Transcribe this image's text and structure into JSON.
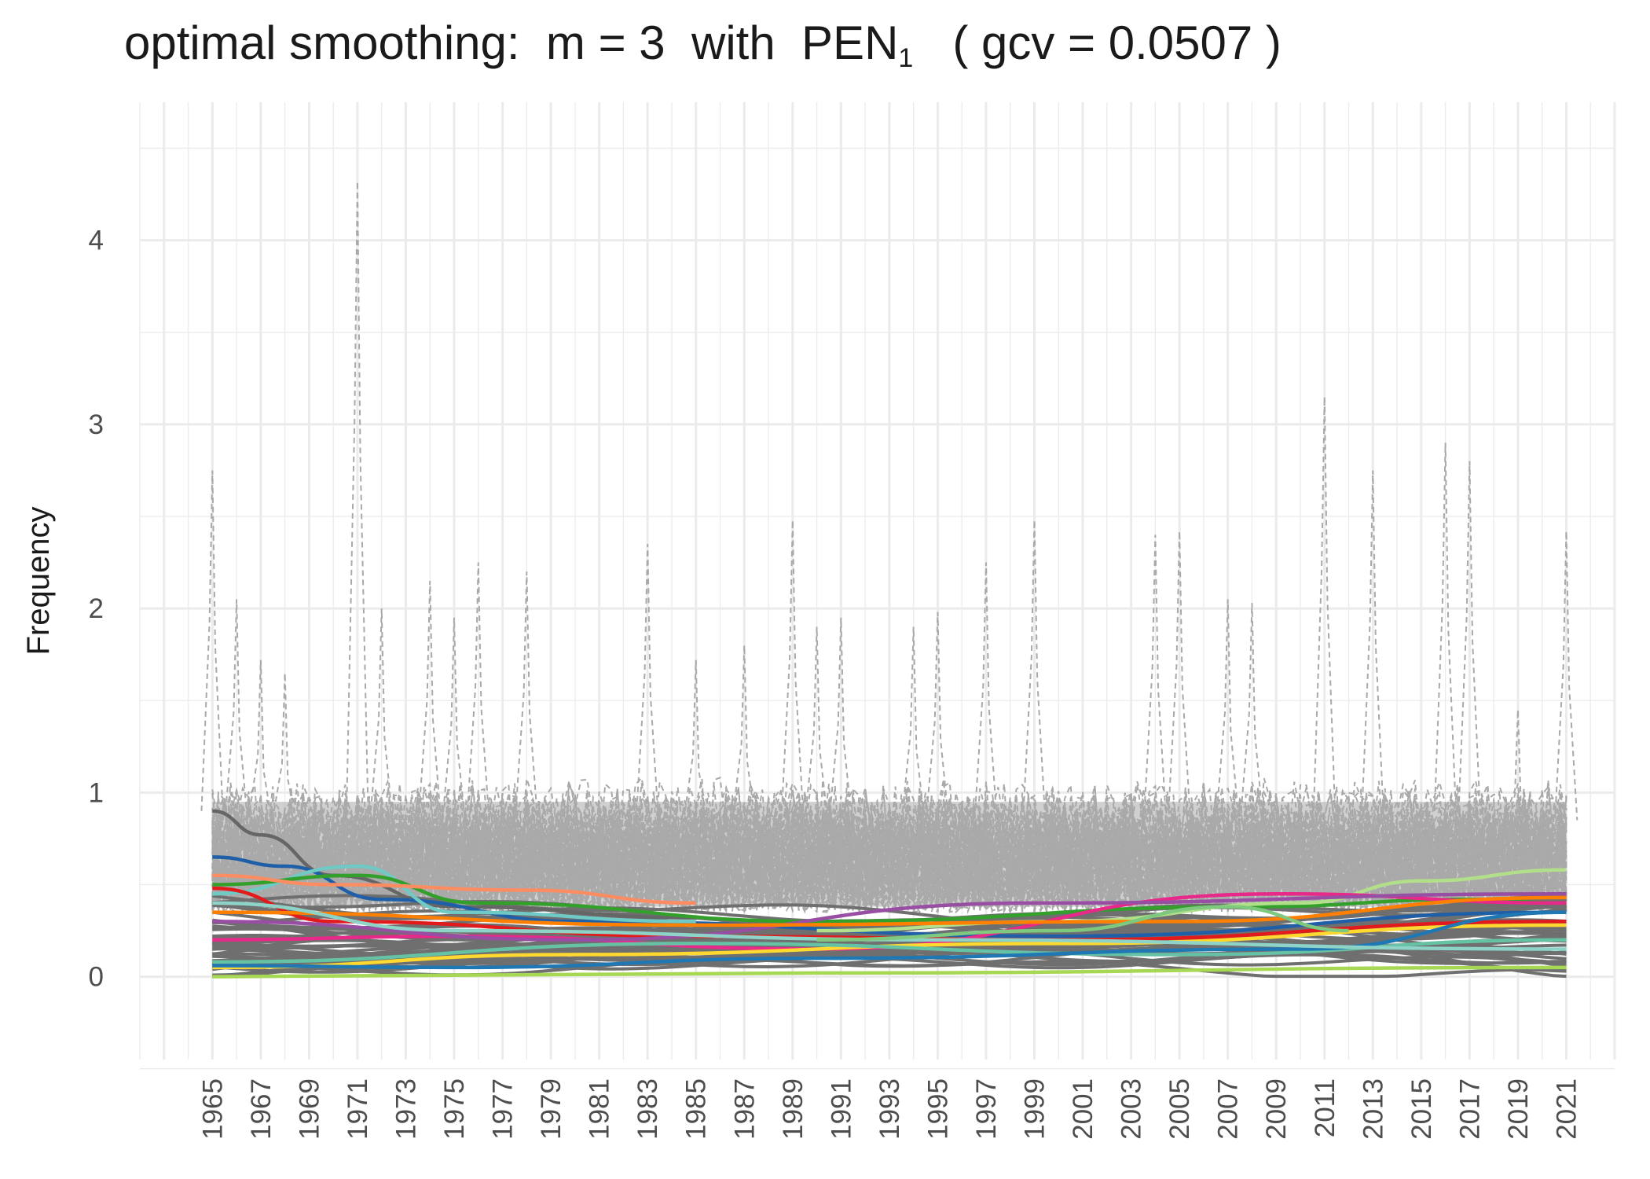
{
  "chart_data": {
    "type": "line",
    "title_parts": {
      "prefix": "optimal smoothing:  m = 3  with  PEN",
      "subscript": "1",
      "suffix": "   ( gcv = 0.0507 )"
    },
    "xlabel": "",
    "ylabel": "Frequency",
    "xlim": [
      1962,
      2023
    ],
    "ylim": [
      -0.45,
      4.75
    ],
    "y_ticks": [
      0,
      1,
      2,
      3,
      4
    ],
    "y_tick_labels": [
      "0",
      "1",
      "2",
      "3",
      "4"
    ],
    "x_ticks": [
      1965,
      1967,
      1969,
      1971,
      1973,
      1975,
      1977,
      1979,
      1981,
      1983,
      1985,
      1987,
      1989,
      1991,
      1993,
      1995,
      1997,
      1999,
      2001,
      2003,
      2005,
      2007,
      2009,
      2011,
      2013,
      2015,
      2017,
      2019,
      2021
    ],
    "x_tick_labels": [
      "1965",
      "1967",
      "1969",
      "1971",
      "1973",
      "1975",
      "1977",
      "1979",
      "1981",
      "1983",
      "1985",
      "1987",
      "1989",
      "1991",
      "1993",
      "1995",
      "1997",
      "1999",
      "2001",
      "2003",
      "2005",
      "2007",
      "2009",
      "2011",
      "2013",
      "2015",
      "2017",
      "2019",
      "2021"
    ],
    "grid": true,
    "raw_series_style": "dashed grey",
    "raw_peaks": [
      {
        "x": 1965,
        "y": 2.75
      },
      {
        "x": 1966,
        "y": 2.05
      },
      {
        "x": 1967,
        "y": 1.72
      },
      {
        "x": 1968,
        "y": 1.65
      },
      {
        "x": 1971,
        "y": 4.32
      },
      {
        "x": 1972,
        "y": 2.0
      },
      {
        "x": 1974,
        "y": 2.15
      },
      {
        "x": 1975,
        "y": 1.95
      },
      {
        "x": 1976,
        "y": 2.25
      },
      {
        "x": 1978,
        "y": 2.2
      },
      {
        "x": 1983,
        "y": 2.35
      },
      {
        "x": 1985,
        "y": 1.72
      },
      {
        "x": 1987,
        "y": 1.8
      },
      {
        "x": 1989,
        "y": 2.48
      },
      {
        "x": 1990,
        "y": 1.9
      },
      {
        "x": 1991,
        "y": 1.95
      },
      {
        "x": 1994,
        "y": 1.9
      },
      {
        "x": 1995,
        "y": 1.98
      },
      {
        "x": 1997,
        "y": 2.25
      },
      {
        "x": 1999,
        "y": 2.48
      },
      {
        "x": 2004,
        "y": 2.4
      },
      {
        "x": 2005,
        "y": 2.42
      },
      {
        "x": 2007,
        "y": 2.05
      },
      {
        "x": 2008,
        "y": 2.03
      },
      {
        "x": 2011,
        "y": 3.15
      },
      {
        "x": 2013,
        "y": 2.75
      },
      {
        "x": 2016,
        "y": 2.9
      },
      {
        "x": 2017,
        "y": 2.8
      },
      {
        "x": 2019,
        "y": 1.45
      },
      {
        "x": 2021,
        "y": 2.42
      }
    ],
    "smooth_highlight": [
      {
        "color": "#666666",
        "values": [
          {
            "x": 1965,
            "y": 0.9
          },
          {
            "x": 1967,
            "y": 0.77
          },
          {
            "x": 1970,
            "y": 0.55
          },
          {
            "x": 1975,
            "y": 0.38
          },
          {
            "x": 1985,
            "y": 0.32
          }
        ]
      },
      {
        "color": "#1f5fa8",
        "values": [
          {
            "x": 1965,
            "y": 0.65
          },
          {
            "x": 1968,
            "y": 0.6
          },
          {
            "x": 1972,
            "y": 0.42
          },
          {
            "x": 1980,
            "y": 0.3
          },
          {
            "x": 2000,
            "y": 0.22
          },
          {
            "x": 2021,
            "y": 0.35
          }
        ]
      },
      {
        "color": "#6fc9c4",
        "values": [
          {
            "x": 1965,
            "y": 0.45
          },
          {
            "x": 1971,
            "y": 0.6
          },
          {
            "x": 1975,
            "y": 0.35
          },
          {
            "x": 1985,
            "y": 0.3
          }
        ]
      },
      {
        "color": "#33a02c",
        "values": [
          {
            "x": 1965,
            "y": 0.5
          },
          {
            "x": 1971,
            "y": 0.55
          },
          {
            "x": 1976,
            "y": 0.4
          },
          {
            "x": 1990,
            "y": 0.3
          },
          {
            "x": 2008,
            "y": 0.38
          },
          {
            "x": 2017,
            "y": 0.42
          },
          {
            "x": 2021,
            "y": 0.4
          }
        ]
      },
      {
        "color": "#fc8d62",
        "values": [
          {
            "x": 1965,
            "y": 0.55
          },
          {
            "x": 1970,
            "y": 0.5
          },
          {
            "x": 1978,
            "y": 0.47
          },
          {
            "x": 1985,
            "y": 0.4
          }
        ]
      },
      {
        "color": "#b2df8a",
        "values": [
          {
            "x": 1990,
            "y": 0.25
          },
          {
            "x": 2000,
            "y": 0.3
          },
          {
            "x": 2010,
            "y": 0.4
          },
          {
            "x": 2015,
            "y": 0.52
          },
          {
            "x": 2021,
            "y": 0.58
          }
        ]
      },
      {
        "color": "#e31a1c",
        "values": [
          {
            "x": 1965,
            "y": 0.48
          },
          {
            "x": 1970,
            "y": 0.3
          },
          {
            "x": 1985,
            "y": 0.22
          },
          {
            "x": 2000,
            "y": 0.2
          },
          {
            "x": 2021,
            "y": 0.3
          }
        ]
      },
      {
        "color": "#e7298a",
        "values": [
          {
            "x": 1965,
            "y": 0.2
          },
          {
            "x": 1975,
            "y": 0.22
          },
          {
            "x": 1990,
            "y": 0.15
          },
          {
            "x": 2009,
            "y": 0.45
          },
          {
            "x": 2021,
            "y": 0.4
          }
        ]
      },
      {
        "color": "#ffd92f",
        "values": [
          {
            "x": 1965,
            "y": 0.05
          },
          {
            "x": 1980,
            "y": 0.12
          },
          {
            "x": 2000,
            "y": 0.18
          },
          {
            "x": 2021,
            "y": 0.28
          }
        ]
      },
      {
        "color": "#66c2a5",
        "values": [
          {
            "x": 1965,
            "y": 0.08
          },
          {
            "x": 1985,
            "y": 0.18
          },
          {
            "x": 2005,
            "y": 0.12
          },
          {
            "x": 2021,
            "y": 0.2
          }
        ]
      },
      {
        "color": "#984ea3",
        "values": [
          {
            "x": 1965,
            "y": 0.3
          },
          {
            "x": 1980,
            "y": 0.2
          },
          {
            "x": 1999,
            "y": 0.4
          },
          {
            "x": 2021,
            "y": 0.45
          }
        ]
      },
      {
        "color": "#1f78b4",
        "values": [
          {
            "x": 1965,
            "y": 0.06
          },
          {
            "x": 1975,
            "y": 0.05
          },
          {
            "x": 1990,
            "y": 0.1
          },
          {
            "x": 2010,
            "y": 0.15
          },
          {
            "x": 2021,
            "y": 0.35
          }
        ]
      },
      {
        "color": "#ff7f00",
        "values": [
          {
            "x": 1965,
            "y": 0.35
          },
          {
            "x": 1985,
            "y": 0.28
          },
          {
            "x": 2005,
            "y": 0.3
          },
          {
            "x": 2021,
            "y": 0.43
          }
        ]
      },
      {
        "color": "#a6d854",
        "values": [
          {
            "x": 1965,
            "y": 0.0
          },
          {
            "x": 1990,
            "y": 0.02
          },
          {
            "x": 2021,
            "y": 0.05
          }
        ]
      },
      {
        "color": "#8dd3c7",
        "values": [
          {
            "x": 1965,
            "y": 0.4
          },
          {
            "x": 1975,
            "y": 0.25
          },
          {
            "x": 1995,
            "y": 0.2
          },
          {
            "x": 2021,
            "y": 0.15
          }
        ]
      },
      {
        "color": "#7fc97f",
        "values": [
          {
            "x": 1990,
            "y": 0.2
          },
          {
            "x": 2000,
            "y": 0.25
          },
          {
            "x": 2007,
            "y": 0.38
          },
          {
            "x": 2012,
            "y": 0.25
          }
        ]
      }
    ]
  }
}
